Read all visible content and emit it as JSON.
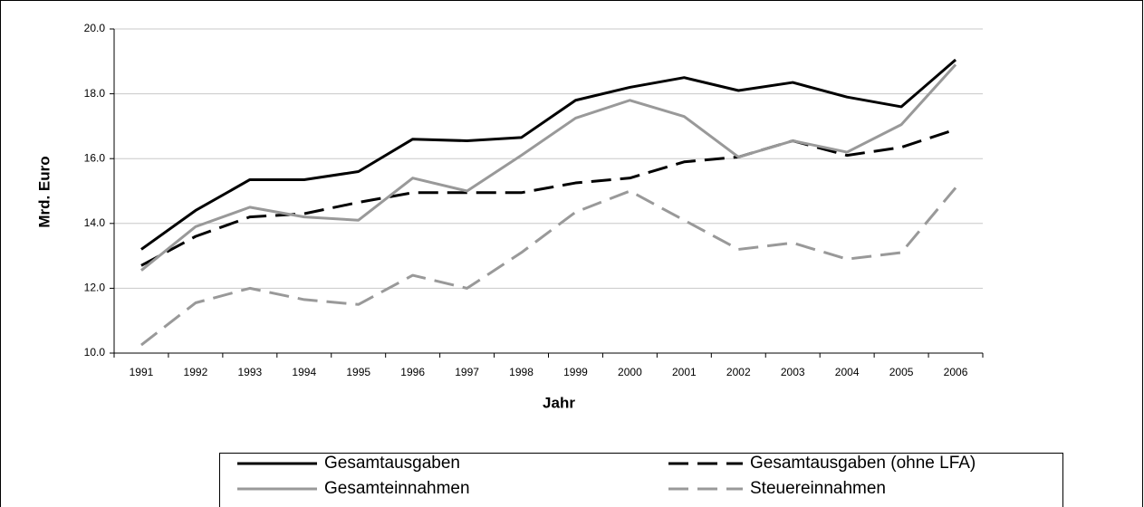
{
  "chart_data": {
    "type": "line",
    "xlabel": "Jahr",
    "ylabel": "Mrd. Euro",
    "categories": [
      "1991",
      "1992",
      "1993",
      "1994",
      "1995",
      "1996",
      "1997",
      "1998",
      "1999",
      "2000",
      "2001",
      "2002",
      "2003",
      "2004",
      "2005",
      "2006"
    ],
    "series": [
      {
        "name": "Gesamtausgaben",
        "color": "#000000",
        "dashed": false,
        "values": [
          13.2,
          14.4,
          15.35,
          15.35,
          15.6,
          16.6,
          16.55,
          16.65,
          17.8,
          18.2,
          18.5,
          18.1,
          18.35,
          17.9,
          17.6,
          19.05
        ]
      },
      {
        "name": "Gesamtausgaben (ohne LFA)",
        "color": "#000000",
        "dashed": true,
        "values": [
          12.7,
          13.6,
          14.2,
          14.3,
          14.65,
          14.95,
          14.95,
          14.95,
          15.25,
          15.4,
          15.9,
          16.05,
          16.55,
          16.1,
          16.35,
          16.9
        ]
      },
      {
        "name": "Gesamteinnahmen",
        "color": "#999999",
        "dashed": false,
        "values": [
          12.55,
          13.9,
          14.5,
          14.2,
          14.1,
          15.4,
          15.0,
          16.1,
          17.25,
          17.8,
          17.3,
          16.05,
          16.55,
          16.2,
          17.05,
          18.9
        ]
      },
      {
        "name": "Steuereinnahmen",
        "color": "#999999",
        "dashed": true,
        "values": [
          10.25,
          11.55,
          12.0,
          11.65,
          11.5,
          12.4,
          12.0,
          13.1,
          14.35,
          15.0,
          14.1,
          13.2,
          13.4,
          12.9,
          13.1,
          15.1
        ]
      }
    ],
    "ylim": [
      10,
      20
    ],
    "yticks": [
      {
        "value": 10,
        "label": "10.0"
      },
      {
        "value": 12,
        "label": "12.0"
      },
      {
        "value": 14,
        "label": "14.0"
      },
      {
        "value": 16,
        "label": "16.0"
      },
      {
        "value": 18,
        "label": "18.0"
      },
      {
        "value": 20,
        "label": "20.0"
      }
    ],
    "grid": true
  }
}
